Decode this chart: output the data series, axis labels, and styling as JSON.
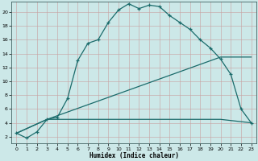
{
  "xlabel": "Humidex (Indice chaleur)",
  "bg_color": "#cce8e8",
  "line_color": "#1a6b6b",
  "xlim": [
    -0.5,
    23.5
  ],
  "ylim": [
    1,
    21.5
  ],
  "xticks": [
    0,
    1,
    2,
    3,
    4,
    5,
    6,
    7,
    8,
    9,
    10,
    11,
    12,
    13,
    14,
    15,
    16,
    17,
    18,
    19,
    20,
    21,
    22,
    23
  ],
  "yticks": [
    2,
    4,
    6,
    8,
    10,
    12,
    14,
    16,
    18,
    20
  ],
  "line1_x": [
    0,
    1,
    2,
    3,
    4,
    5,
    6,
    7,
    8,
    9,
    10,
    11,
    12,
    13,
    14,
    15,
    16,
    17,
    18,
    19,
    20,
    21,
    22,
    23
  ],
  "line1_y": [
    2.5,
    1.8,
    2.7,
    4.5,
    4.8,
    7.5,
    13.0,
    15.5,
    16.0,
    18.5,
    20.3,
    21.2,
    20.5,
    21.0,
    20.8,
    19.5,
    18.5,
    17.5,
    16.0,
    14.8,
    13.2,
    11.0,
    6.0,
    4.0
  ],
  "line2_x": [
    0,
    3,
    20,
    23
  ],
  "line2_y": [
    2.5,
    4.5,
    4.5,
    4.0
  ],
  "line3_x": [
    0,
    3,
    20,
    23
  ],
  "line3_y": [
    2.5,
    4.5,
    13.5,
    13.5
  ]
}
